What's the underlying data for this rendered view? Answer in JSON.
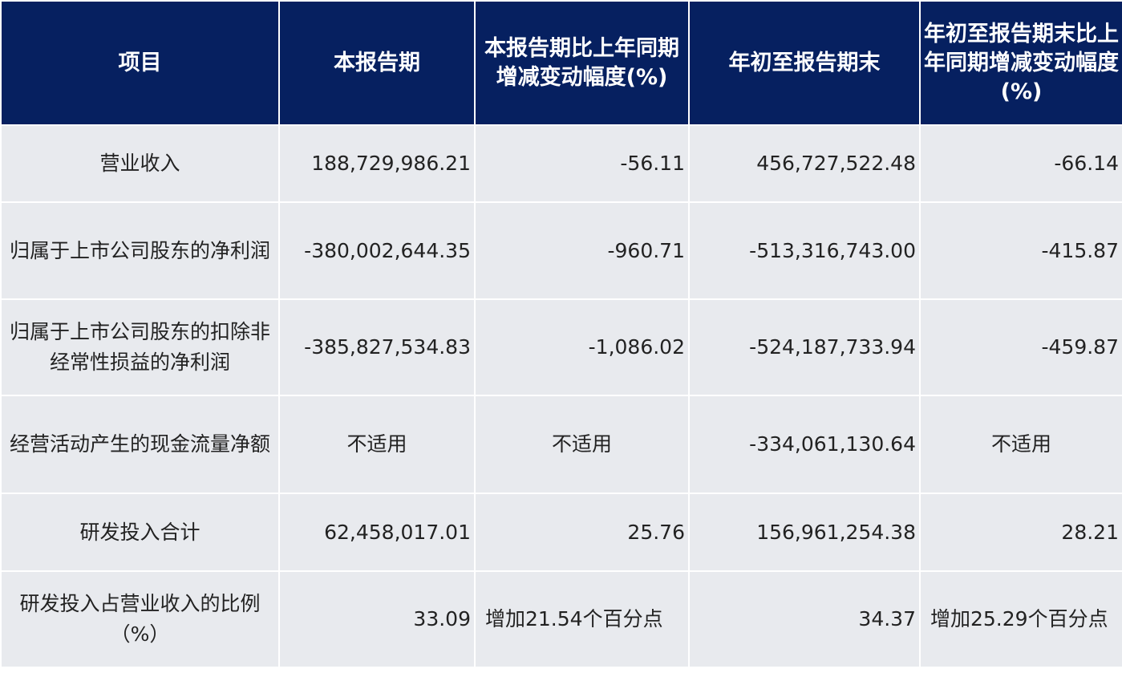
{
  "table": {
    "headers": [
      "项目",
      "本报告期",
      "本报告期比上年同期增减变动幅度(%)",
      "年初至报告期末",
      "年初至报告期末比上年同期增减变动幅度(%)"
    ],
    "rows": [
      {
        "item": "营业收入",
        "current_period": "188,729,986.21",
        "current_change": "-56.11",
        "ytd": "456,727,522.48",
        "ytd_change": "-66.14"
      },
      {
        "item": "归属于上市公司股东的净利润",
        "current_period": "-380,002,644.35",
        "current_change": "-960.71",
        "ytd": "-513,316,743.00",
        "ytd_change": "-415.87"
      },
      {
        "item": "归属于上市公司股东的扣除非经常性损益的净利润",
        "current_period": "-385,827,534.83",
        "current_change": "-1,086.02",
        "ytd": "-524,187,733.94",
        "ytd_change": "-459.87"
      },
      {
        "item": "经营活动产生的现金流量净额",
        "current_period": "不适用",
        "current_change": "不适用",
        "ytd": "-334,061,130.64",
        "ytd_change": "不适用"
      },
      {
        "item": "研发投入合计",
        "current_period": "62,458,017.01",
        "current_change": "25.76",
        "ytd": "156,961,254.38",
        "ytd_change": "28.21"
      },
      {
        "item": "研发投入占营业收入的比例（%）",
        "current_period": "33.09",
        "current_change": "增加21.54个百分点",
        "ytd": "34.37",
        "ytd_change": "增加25.29个百分点"
      }
    ]
  },
  "colors": {
    "header_bg": "#062060",
    "header_text": "#ffffff",
    "cell_bg": "#e8eaee",
    "grid_line": "#ffffff"
  }
}
